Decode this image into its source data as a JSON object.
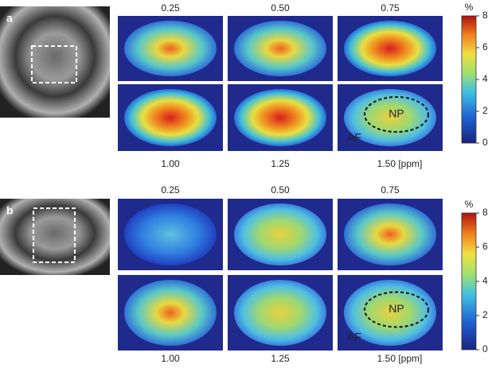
{
  "panels": [
    {
      "label": "a",
      "offsets_top": [
        "0.25",
        "0.50",
        "0.75"
      ],
      "offsets_bottom": [
        "1.00",
        "1.25",
        "1.50 [ppm]"
      ],
      "colorbar": {
        "unit": "%",
        "lim": [
          0,
          8
        ],
        "ticks": [
          0,
          2,
          4,
          6,
          8
        ]
      },
      "annotations": {
        "nucleus": "NP",
        "annulus": "AF"
      }
    },
    {
      "label": "b",
      "offsets_top": [
        "0.25",
        "0.50",
        "0.75"
      ],
      "offsets_bottom": [
        "1.00",
        "1.25",
        "1.50 [ppm]"
      ],
      "colorbar": {
        "unit": "%",
        "lim": [
          0,
          8
        ],
        "ticks": [
          0,
          2,
          4,
          6,
          8
        ]
      },
      "annotations": {
        "nucleus": "NP",
        "annulus": "AF"
      }
    }
  ]
}
